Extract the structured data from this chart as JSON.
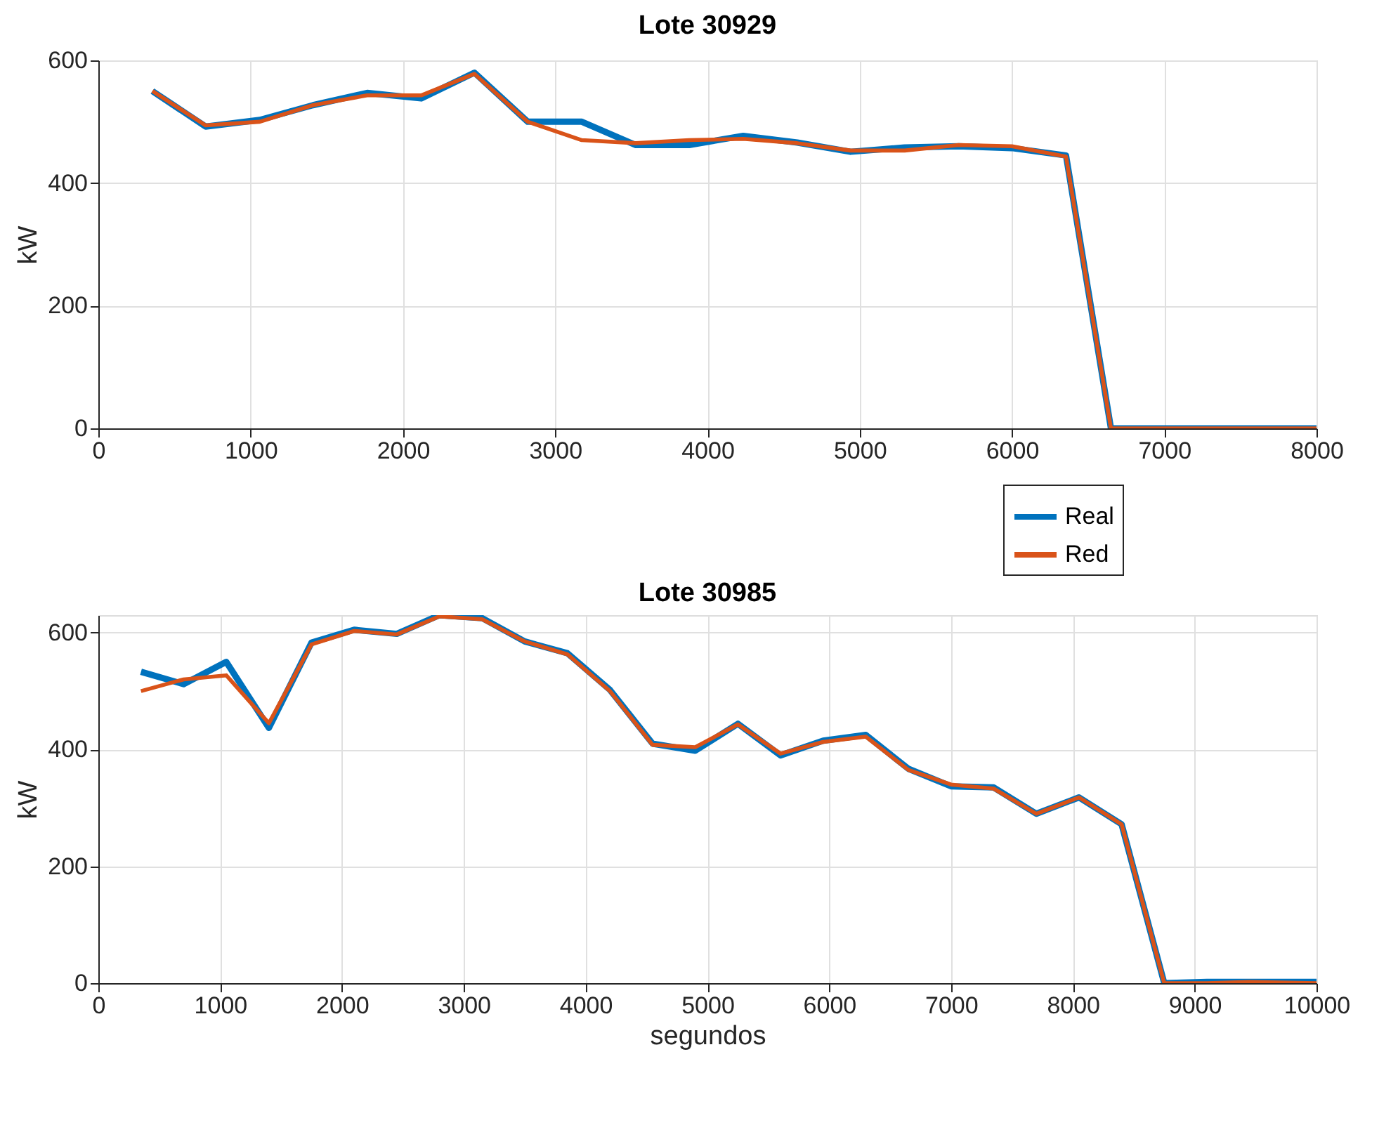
{
  "chart_data": [
    {
      "type": "line",
      "title": "Lote 30929",
      "ylabel": "kW",
      "xlim": [
        0,
        8000
      ],
      "xticks": [
        0,
        1000,
        2000,
        3000,
        4000,
        5000,
        6000,
        7000,
        8000
      ],
      "ylim": [
        0,
        600
      ],
      "yticks": [
        0,
        200,
        400,
        600
      ],
      "grid": true,
      "legend": "bottom right",
      "line_style": "solid",
      "x": [
        355,
        705,
        1060,
        1410,
        1765,
        2120,
        2470,
        2820,
        3175,
        3530,
        3880,
        4235,
        4590,
        4940,
        5295,
        5650,
        6000,
        6355,
        6650,
        8000
      ],
      "series": [
        {
          "name": "Real",
          "color": "#0072bd",
          "values": [
            550,
            492,
            503,
            527,
            547,
            538,
            580,
            500,
            500,
            462,
            462,
            477,
            466,
            451,
            458,
            460,
            457,
            445,
            0,
            0
          ]
        },
        {
          "name": "Red",
          "color": "#d95319",
          "values": [
            550,
            494,
            500,
            527,
            543,
            543,
            578,
            500,
            470,
            465,
            470,
            472,
            465,
            453,
            453,
            462,
            460,
            443,
            0,
            0
          ]
        }
      ]
    },
    {
      "type": "line",
      "title": "Lote 30985",
      "xlabel": "segundos",
      "ylabel": "kW",
      "xlim": [
        0,
        10000
      ],
      "xticks": [
        0,
        1000,
        2000,
        3000,
        4000,
        5000,
        6000,
        7000,
        8000,
        9000,
        10000
      ],
      "ylim": [
        0,
        630
      ],
      "yticks": [
        0,
        200,
        400,
        600
      ],
      "grid": true,
      "line_style": "solid",
      "x": [
        350,
        700,
        1050,
        1400,
        1750,
        2100,
        2450,
        2800,
        3150,
        3500,
        3850,
        4200,
        4550,
        4900,
        5250,
        5600,
        5950,
        6300,
        6650,
        7000,
        7350,
        7700,
        8050,
        8400,
        8750,
        9100,
        9450,
        10000
      ],
      "series": [
        {
          "color": "#0072bd",
          "values": [
            533,
            512,
            550,
            437,
            583,
            605,
            598,
            630,
            625,
            585,
            565,
            502,
            410,
            398,
            444,
            390,
            415,
            425,
            367,
            337,
            335,
            290,
            318,
            272,
            0,
            2,
            2,
            2
          ]
        },
        {
          "color": "#d95319",
          "values": [
            500,
            520,
            527,
            445,
            580,
            603,
            597,
            628,
            623,
            585,
            563,
            500,
            408,
            404,
            443,
            393,
            413,
            422,
            365,
            340,
            333,
            290,
            318,
            272,
            0,
            0,
            2,
            0
          ]
        }
      ]
    }
  ]
}
